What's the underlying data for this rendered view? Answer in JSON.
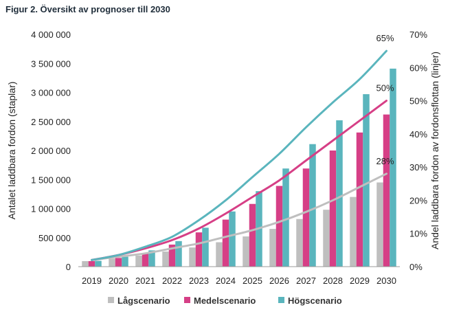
{
  "title": "Figur 2. Översikt av prognoser till 2030",
  "chart_data": {
    "type": "bar",
    "categories": [
      "2019",
      "2020",
      "2021",
      "2022",
      "2023",
      "2024",
      "2025",
      "2026",
      "2027",
      "2028",
      "2029",
      "2030"
    ],
    "ylabel": "Antalet laddbara fordon (staplar)",
    "y2label": "Andel laddbara fordon av fordonsflottan (linjer)",
    "ylim": [
      0,
      4000000
    ],
    "y2lim": [
      0,
      0.7
    ],
    "y_ticks": [
      "0",
      "500 000",
      "1 000 000",
      "1 500 000",
      "2 000 000",
      "2 500 000",
      "3 000 000",
      "3 500 000",
      "4 000 000"
    ],
    "y2_ticks": [
      "0%",
      "10%",
      "20%",
      "30%",
      "40%",
      "50%",
      "60%",
      "70%"
    ],
    "series": [
      {
        "name": "Lågscenario",
        "color": "#bfbfbf",
        "bars": [
          95000,
          140000,
          190000,
          260000,
          330000,
          420000,
          520000,
          650000,
          820000,
          980000,
          1200000,
          1450000
        ],
        "line": [
          0.02,
          0.03,
          0.04,
          0.055,
          0.07,
          0.09,
          0.11,
          0.135,
          0.165,
          0.2,
          0.24,
          0.28
        ]
      },
      {
        "name": "Medelscenario",
        "color": "#d63f86",
        "bars": [
          95000,
          150000,
          230000,
          380000,
          590000,
          810000,
          1080000,
          1390000,
          1690000,
          2000000,
          2310000,
          2620000
        ],
        "line": [
          0.02,
          0.035,
          0.055,
          0.08,
          0.115,
          0.16,
          0.21,
          0.26,
          0.32,
          0.38,
          0.44,
          0.5
        ]
      },
      {
        "name": "Högscenario",
        "color": "#5ab5bd",
        "bars": [
          100000,
          170000,
          280000,
          440000,
          670000,
          950000,
          1300000,
          1690000,
          2110000,
          2520000,
          2970000,
          3410000
        ],
        "line": [
          0.02,
          0.035,
          0.06,
          0.09,
          0.14,
          0.2,
          0.27,
          0.34,
          0.42,
          0.495,
          0.565,
          0.65
        ]
      }
    ],
    "annotations": [
      "65%",
      "50%",
      "28%"
    ],
    "grid": false,
    "legend": "bottom"
  }
}
